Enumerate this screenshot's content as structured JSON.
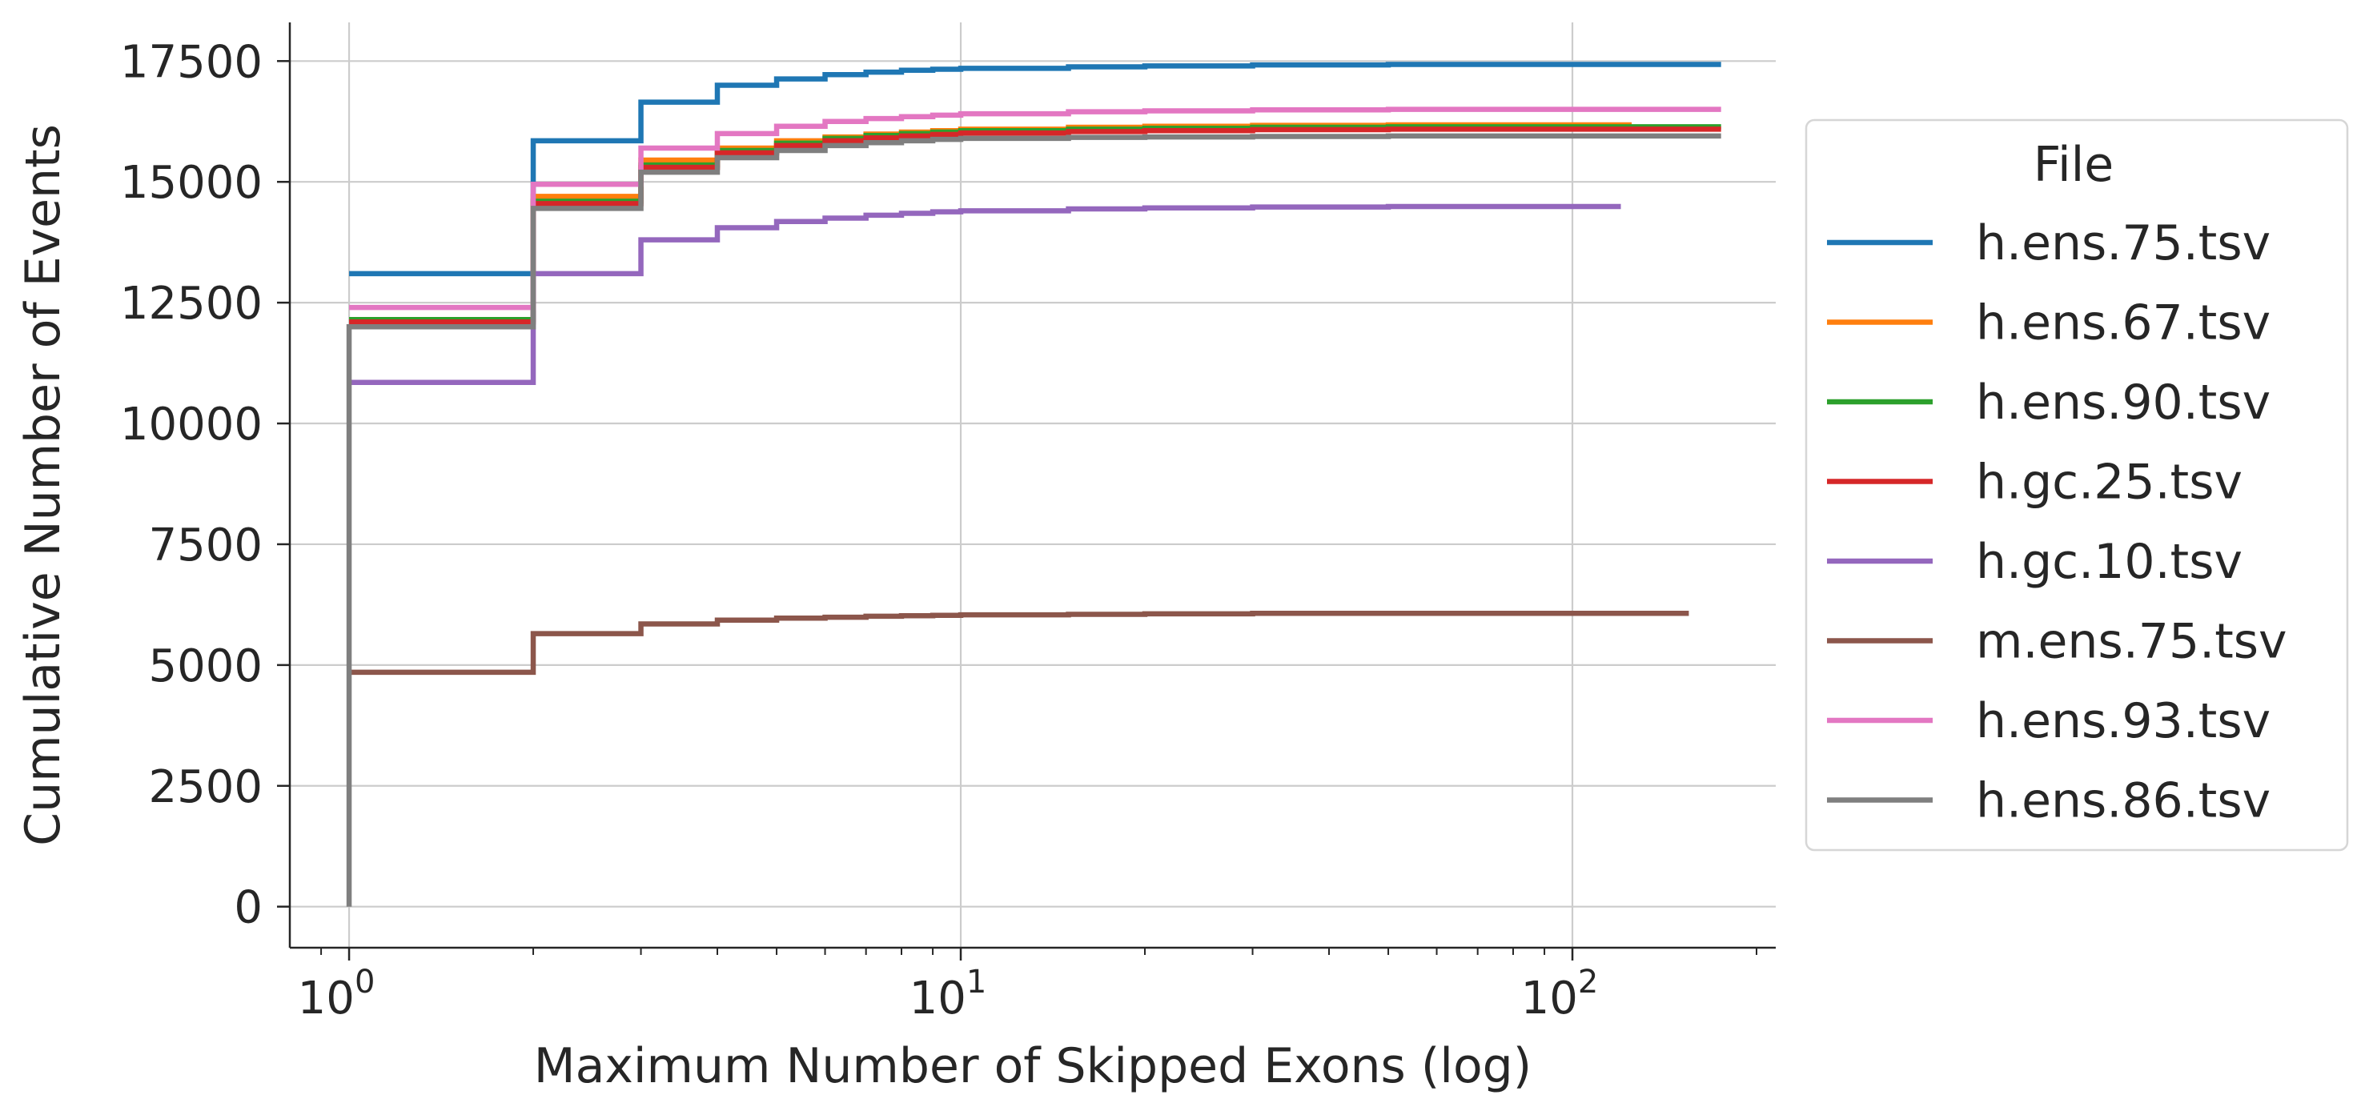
{
  "chart_data": {
    "type": "line",
    "step": "post",
    "xlabel": "Maximum Number of Skipped Exons (log)",
    "ylabel": "Cumulative Number of Events",
    "xscale": "log",
    "xlim": [
      0.8,
      215
    ],
    "ylim": [
      -850,
      18300
    ],
    "yticks": [
      0,
      2500,
      5000,
      7500,
      10000,
      12500,
      15000,
      17500
    ],
    "ytick_labels": [
      "0",
      "2500",
      "5000",
      "7500",
      "10000",
      "12500",
      "15000",
      "17500"
    ],
    "xtick_base": "10",
    "xtick_exponents": [
      "0",
      "1",
      "2"
    ],
    "grid": true,
    "legend": {
      "title": "File",
      "placement": "outside-right"
    },
    "series": [
      {
        "name": "h.ens.75.tsv",
        "color": "#1f77b4",
        "x": [
          1,
          2,
          3,
          4,
          5,
          6,
          7,
          8,
          9,
          10,
          15,
          20,
          30,
          50,
          175
        ],
        "y": [
          13100,
          15850,
          16650,
          17000,
          17130,
          17220,
          17270,
          17310,
          17330,
          17350,
          17380,
          17400,
          17420,
          17430,
          17430
        ]
      },
      {
        "name": "h.ens.67.tsv",
        "color": "#ff7f0e",
        "x": [
          1,
          2,
          3,
          4,
          5,
          6,
          7,
          8,
          9,
          10,
          15,
          20,
          30,
          50,
          125
        ],
        "y": [
          12150,
          14700,
          15450,
          15700,
          15850,
          15930,
          15990,
          16030,
          16060,
          16090,
          16130,
          16150,
          16170,
          16180,
          16180
        ]
      },
      {
        "name": "h.ens.90.tsv",
        "color": "#2ca02c",
        "x": [
          1,
          2,
          3,
          4,
          5,
          6,
          7,
          8,
          9,
          10,
          15,
          20,
          30,
          50,
          175
        ],
        "y": [
          12150,
          14600,
          15350,
          15650,
          15800,
          15900,
          15960,
          16000,
          16030,
          16060,
          16090,
          16110,
          16130,
          16140,
          16140
        ]
      },
      {
        "name": "h.gc.25.tsv",
        "color": "#d62728",
        "x": [
          1,
          2,
          3,
          4,
          5,
          6,
          7,
          8,
          9,
          10,
          15,
          20,
          30,
          50,
          175
        ],
        "y": [
          12100,
          14550,
          15300,
          15600,
          15750,
          15850,
          15910,
          15950,
          15980,
          16010,
          16040,
          16060,
          16080,
          16090,
          16090
        ]
      },
      {
        "name": "h.gc.10.tsv",
        "color": "#9467bd",
        "x": [
          1,
          2,
          3,
          4,
          5,
          6,
          7,
          8,
          9,
          10,
          15,
          20,
          30,
          50,
          120
        ],
        "y": [
          10850,
          13100,
          13800,
          14050,
          14180,
          14250,
          14310,
          14350,
          14380,
          14400,
          14440,
          14460,
          14480,
          14490,
          14490
        ]
      },
      {
        "name": "m.ens.75.tsv",
        "color": "#8c564b",
        "x": [
          1,
          2,
          3,
          4,
          5,
          6,
          7,
          8,
          9,
          10,
          15,
          20,
          30,
          50,
          155
        ],
        "y": [
          4850,
          5650,
          5850,
          5930,
          5970,
          5990,
          6010,
          6020,
          6030,
          6040,
          6050,
          6060,
          6070,
          6070,
          6070
        ]
      },
      {
        "name": "h.ens.93.tsv",
        "color": "#e377c2",
        "x": [
          1,
          2,
          3,
          4,
          5,
          6,
          7,
          8,
          9,
          10,
          15,
          20,
          30,
          50,
          175
        ],
        "y": [
          12400,
          14950,
          15700,
          16000,
          16150,
          16250,
          16310,
          16350,
          16380,
          16410,
          16450,
          16470,
          16490,
          16500,
          16500
        ]
      },
      {
        "name": "h.ens.86.tsv",
        "color": "#7f7f7f",
        "x": [
          1,
          2,
          3,
          4,
          5,
          6,
          7,
          8,
          9,
          10,
          15,
          20,
          30,
          50,
          175
        ],
        "y": [
          12000,
          14450,
          15200,
          15500,
          15650,
          15750,
          15810,
          15850,
          15880,
          15900,
          15920,
          15930,
          15940,
          15950,
          15950
        ],
        "start": 0
      }
    ]
  }
}
